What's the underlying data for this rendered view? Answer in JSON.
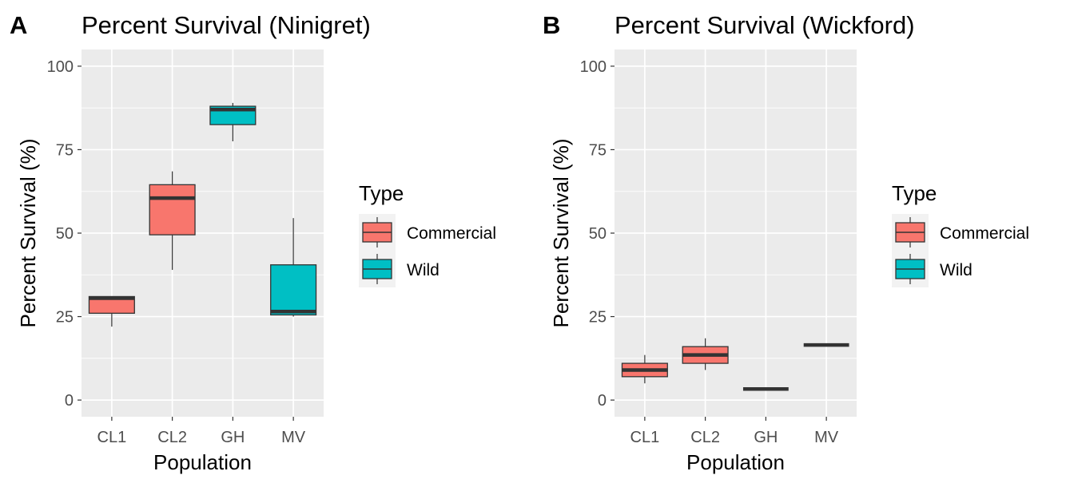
{
  "chart_data": [
    {
      "type": "boxplot",
      "panel_tag": "A",
      "title": "Percent Survival (Ninigret)",
      "xlabel": "Population",
      "ylabel": "Percent Survival (%)",
      "categories": [
        "CL1",
        "CL2",
        "GH",
        "MV"
      ],
      "yticks": [
        0,
        25,
        50,
        75,
        100
      ],
      "ylim": [
        -5,
        105
      ],
      "grid": true,
      "legend": {
        "title": "Type",
        "position": "right",
        "items": [
          {
            "label": "Commercial",
            "color": "#F8766D"
          },
          {
            "label": "Wild",
            "color": "#00BFC4"
          }
        ]
      },
      "boxes": [
        {
          "category": "CL1",
          "type": "Commercial",
          "min": 22,
          "q1": 26,
          "median": 30.5,
          "q3": 31,
          "max": 31
        },
        {
          "category": "CL2",
          "type": "Commercial",
          "min": 39,
          "q1": 49.5,
          "median": 60.5,
          "q3": 64.5,
          "max": 68.5
        },
        {
          "category": "GH",
          "type": "Wild",
          "min": 77.5,
          "q1": 82.5,
          "median": 87,
          "q3": 88,
          "max": 89
        },
        {
          "category": "MV",
          "type": "Wild",
          "min": 25,
          "q1": 25.5,
          "median": 26.5,
          "q3": 40.5,
          "max": 54.5
        }
      ]
    },
    {
      "type": "boxplot",
      "panel_tag": "B",
      "title": "Percent Survival (Wickford)",
      "xlabel": "Population",
      "ylabel": "Percent Survival (%)",
      "categories": [
        "CL1",
        "CL2",
        "GH",
        "MV"
      ],
      "yticks": [
        0,
        25,
        50,
        75,
        100
      ],
      "ylim": [
        -5,
        105
      ],
      "grid": true,
      "legend": {
        "title": "Type",
        "position": "right",
        "items": [
          {
            "label": "Commercial",
            "color": "#F8766D"
          },
          {
            "label": "Wild",
            "color": "#00BFC4"
          }
        ]
      },
      "boxes": [
        {
          "category": "CL1",
          "type": "Commercial",
          "min": 5,
          "q1": 7,
          "median": 9,
          "q3": 11,
          "max": 13.5
        },
        {
          "category": "CL2",
          "type": "Commercial",
          "min": 9,
          "q1": 11,
          "median": 13.5,
          "q3": 16,
          "max": 18.5
        },
        {
          "category": "GH",
          "type": "Commercial",
          "min": 3.3,
          "q1": 3.3,
          "median": 3.3,
          "q3": 3.3,
          "max": 3.3
        },
        {
          "category": "MV",
          "type": "Commercial",
          "min": 16.5,
          "q1": 16.5,
          "median": 16.5,
          "q3": 16.5,
          "max": 16.5
        }
      ]
    }
  ]
}
